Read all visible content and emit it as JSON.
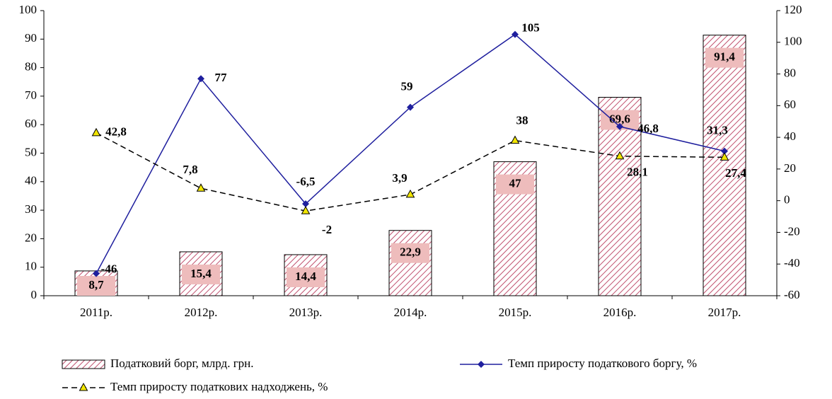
{
  "chart_data": {
    "type": "combo",
    "categories": [
      "2011р.",
      "2012р.",
      "2013р.",
      "2014р.",
      "2015р.",
      "2016р.",
      "2017р."
    ],
    "series": [
      {
        "name": "Податковий борг, млрд. грн.",
        "type": "bar",
        "color": "#c0506e",
        "values": [
          8.7,
          15.4,
          14.4,
          22.9,
          47,
          69.6,
          91.4
        ],
        "value_labels": [
          "8,7",
          "15,4",
          "14,4",
          "22,9",
          "47",
          "69,6",
          "91,4"
        ]
      },
      {
        "name": "Темп приросту податкового боргу, %",
        "type": "line",
        "axis": "y2",
        "color": "#1f1f9e",
        "values": [
          -46,
          77,
          -2,
          59,
          105,
          46.8,
          31.3
        ],
        "value_labels": [
          "-46",
          "77",
          "-2",
          "59",
          "105",
          "46,8",
          "31,3"
        ]
      },
      {
        "name": "Темп приросту податкових надходжень, %",
        "type": "line",
        "axis": "y2",
        "color": "#000000",
        "marker_color": "#f2e600",
        "values": [
          42.8,
          7.8,
          -6.5,
          3.9,
          38,
          28.1,
          27.4
        ],
        "value_labels": [
          "42,8",
          "7,8",
          "-6,5",
          "3,9",
          "38",
          "28,1",
          "27,4"
        ]
      }
    ],
    "ylim": [
      0,
      100
    ],
    "yticks": [
      0,
      10,
      20,
      30,
      40,
      50,
      60,
      70,
      80,
      90,
      100
    ],
    "y2lim": [
      -60,
      120
    ],
    "y2ticks": [
      -60,
      -40,
      -20,
      0,
      20,
      40,
      60,
      80,
      100,
      120
    ]
  }
}
